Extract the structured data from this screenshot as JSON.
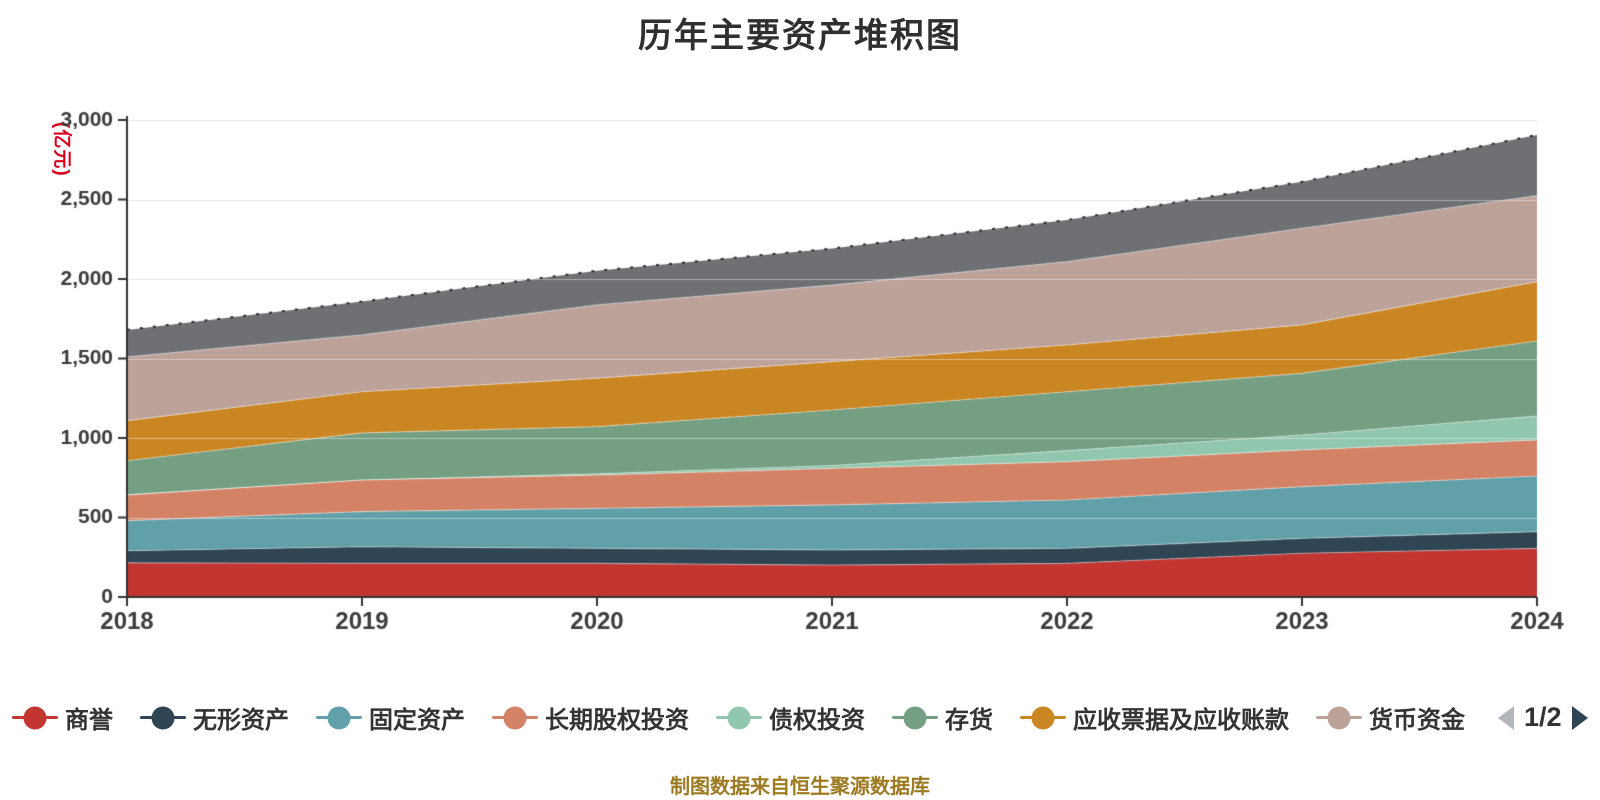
{
  "header": {
    "title": "历年主要资产堆积图"
  },
  "footer": {
    "source_note": "制图数据来自恒生聚源数据库"
  },
  "legend": {
    "page": "1/2"
  },
  "chart_data": {
    "type": "area",
    "stacked": true,
    "title": "历年主要资产堆积图",
    "x": [
      "2018",
      "2019",
      "2020",
      "2021",
      "2022",
      "2023",
      "2024"
    ],
    "xlabel": "",
    "ylabel": "(亿元)",
    "ylabel_color": "#d9001b",
    "ylim": [
      0,
      3000
    ],
    "y_tick_interval": 500,
    "y_ticks": [
      "0",
      "500",
      "1,000",
      "1,500",
      "2,000",
      "2,500",
      "3,000"
    ],
    "grid": true,
    "legend_position": "bottom",
    "series": [
      {
        "name": "商誉",
        "color": "#c23531",
        "in_legend": true,
        "values": [
          215,
          212,
          212,
          201,
          212,
          275,
          306
        ]
      },
      {
        "name": "无形资产",
        "color": "#2f4554",
        "in_legend": true,
        "values": [
          76,
          104,
          94,
          95,
          94,
          94,
          105
        ]
      },
      {
        "name": "固定资产",
        "color": "#61a0a8",
        "in_legend": true,
        "values": [
          189,
          221,
          252,
          283,
          304,
          325,
          350
        ]
      },
      {
        "name": "长期股权投资",
        "color": "#d48265",
        "in_legend": true,
        "values": [
          162,
          199,
          209,
          230,
          241,
          231,
          227
        ]
      },
      {
        "name": "债权投资",
        "color": "#91c7ae",
        "in_legend": true,
        "values": [
          0,
          0,
          8,
          18,
          70,
          94,
          150
        ]
      },
      {
        "name": "存货",
        "color": "#749f83",
        "in_legend": true,
        "values": [
          215,
          296,
          296,
          349,
          370,
          388,
          472
        ]
      },
      {
        "name": "应收票据及应收账款",
        "color": "#ca8622",
        "in_legend": true,
        "values": [
          252,
          259,
          305,
          304,
          294,
          304,
          373
        ]
      },
      {
        "name": "货币资金",
        "color": "#bda29a",
        "in_legend": true,
        "values": [
          401,
          357,
          461,
          482,
          524,
          608,
          541
        ]
      },
      {
        "name": "",
        "color": "#6e7074",
        "in_legend": false,
        "values": [
          170,
          210,
          215,
          230,
          262,
          293,
          382
        ]
      }
    ]
  }
}
